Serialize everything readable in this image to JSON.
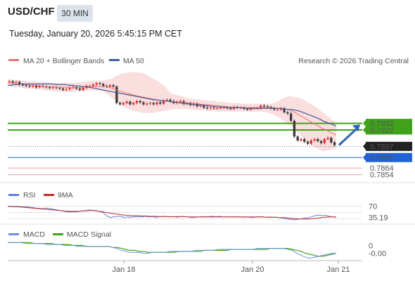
{
  "header": {
    "symbol": "USD/CHF",
    "timeframe": "30 MIN",
    "datetime": "Tuesday, January 20, 2026 5:45:15 PM CET"
  },
  "colors": {
    "candle_up": "#e03030",
    "candle_down": "#3a3a3a",
    "ma20": "#f07070",
    "bollinger_fill": "#fbdede",
    "ma50": "#3d5f9a",
    "resistance": "#3fa21a",
    "current": "#222222",
    "support_blue": "#1f63d6",
    "support_red": "#d94040",
    "rsi": "#5b7fd6",
    "rsi_ma": "#c92a2a",
    "macd": "#6b8fe0",
    "macd_signal": "#3fa21a",
    "arrow": "#2f64b4"
  },
  "chart_data": [
    {
      "type": "line",
      "panel": "price",
      "legend": [
        "MA 20 + Bollinger Bands",
        "MA 50"
      ],
      "source": "Research © 2026 Trading Central",
      "ylim": [
        0.7845,
        0.8015
      ],
      "x_ticks": [
        "Jan 18",
        "Jan 20",
        "Jan 21"
      ],
      "close": [
        0.7996,
        0.7994,
        0.7995,
        0.7991,
        0.799,
        0.7989,
        0.7988,
        0.7989,
        0.7987,
        0.7989,
        0.7988,
        0.7987,
        0.7986,
        0.7987,
        0.7986,
        0.7985,
        0.7983,
        0.7984,
        0.7986,
        0.7987,
        0.7985,
        0.7983,
        0.7986,
        0.7989,
        0.7989,
        0.7991,
        0.7993,
        0.7992,
        0.7989,
        0.7988,
        0.799,
        0.7988,
        0.7963,
        0.7961,
        0.7963,
        0.7965,
        0.7961,
        0.7963,
        0.7966,
        0.7964,
        0.7961,
        0.7962,
        0.7963,
        0.7961,
        0.7964,
        0.7962,
        0.7967,
        0.7968,
        0.7966,
        0.7963,
        0.7965,
        0.7966,
        0.7962,
        0.7963,
        0.796,
        0.7962,
        0.7958,
        0.7959,
        0.7956,
        0.7955,
        0.7956,
        0.7955,
        0.7955,
        0.7956,
        0.7956,
        0.7955,
        0.7954,
        0.7957,
        0.7956,
        0.7956,
        0.7954,
        0.7953,
        0.7955,
        0.7955,
        0.7955,
        0.7959,
        0.7958,
        0.7957,
        0.7955,
        0.7953,
        0.7953,
        0.7955,
        0.7949,
        0.7947,
        0.7936,
        0.7912,
        0.7906,
        0.7908,
        0.7904,
        0.7901,
        0.7906,
        0.7908,
        0.7905,
        0.7902,
        0.7908,
        0.791,
        0.7903,
        0.7899
      ],
      "ma20": [
        0.7994,
        0.7993,
        0.7993,
        0.7992,
        0.7992,
        0.7991,
        0.7991,
        0.799,
        0.799,
        0.7989,
        0.7989,
        0.7988,
        0.7988,
        0.7988,
        0.7987,
        0.7987,
        0.7987,
        0.7987,
        0.7987,
        0.7987,
        0.7987,
        0.7987,
        0.7987,
        0.7988,
        0.7988,
        0.7988,
        0.7988,
        0.7988,
        0.7988,
        0.7988,
        0.7987,
        0.7985,
        0.7983,
        0.7981,
        0.798,
        0.7978,
        0.7977,
        0.7975,
        0.7974,
        0.7973,
        0.7972,
        0.7971,
        0.797,
        0.7969,
        0.7968,
        0.7967,
        0.7966,
        0.7966,
        0.7965,
        0.7965,
        0.7964,
        0.7964,
        0.7964,
        0.7963,
        0.7963,
        0.7962,
        0.7962,
        0.7961,
        0.7961,
        0.796,
        0.796,
        0.7959,
        0.7959,
        0.7958,
        0.7958,
        0.7957,
        0.7957,
        0.7956,
        0.7956,
        0.7956,
        0.7956,
        0.7956,
        0.7956,
        0.7956,
        0.7956,
        0.7956,
        0.7956,
        0.7956,
        0.7956,
        0.7955,
        0.7955,
        0.7955,
        0.7954,
        0.7953,
        0.7951,
        0.7948,
        0.7945,
        0.7942,
        0.7939,
        0.7936,
        0.7933,
        0.793,
        0.7927,
        0.7924,
        0.7922,
        0.7919,
        0.7917,
        0.7914
      ],
      "bb_upper": [
        0.7999,
        0.7999,
        0.7998,
        0.7998,
        0.7997,
        0.7997,
        0.7996,
        0.7996,
        0.7996,
        0.7995,
        0.7995,
        0.7995,
        0.7994,
        0.7994,
        0.7994,
        0.7994,
        0.7994,
        0.7994,
        0.7994,
        0.7994,
        0.7994,
        0.7994,
        0.7995,
        0.7995,
        0.7996,
        0.7996,
        0.7997,
        0.7997,
        0.7997,
        0.7998,
        0.7999,
        0.8001,
        0.8004,
        0.8006,
        0.8008,
        0.8009,
        0.801,
        0.801,
        0.801,
        0.8009,
        0.8008,
        0.8006,
        0.8003,
        0.8,
        0.7997,
        0.7994,
        0.799,
        0.7985,
        0.7979,
        0.7976,
        0.7975,
        0.7974,
        0.7972,
        0.7971,
        0.797,
        0.7969,
        0.7969,
        0.7968,
        0.7967,
        0.7967,
        0.7966,
        0.7966,
        0.7965,
        0.7965,
        0.7964,
        0.7964,
        0.7963,
        0.7963,
        0.7963,
        0.7962,
        0.7962,
        0.7962,
        0.7962,
        0.7962,
        0.7962,
        0.7962,
        0.7962,
        0.7962,
        0.7962,
        0.7964,
        0.7966,
        0.797,
        0.7972,
        0.7973,
        0.7973,
        0.7972,
        0.7971,
        0.7969,
        0.7966,
        0.7963,
        0.796,
        0.7957,
        0.7953,
        0.7949,
        0.7945,
        0.7941,
        0.7937,
        0.7933
      ],
      "bb_lower": [
        0.7989,
        0.7988,
        0.7987,
        0.7987,
        0.7986,
        0.7985,
        0.7985,
        0.7985,
        0.7984,
        0.7984,
        0.7983,
        0.7982,
        0.7982,
        0.7981,
        0.7981,
        0.798,
        0.798,
        0.798,
        0.798,
        0.798,
        0.798,
        0.7981,
        0.7981,
        0.7981,
        0.7982,
        0.7982,
        0.7982,
        0.7982,
        0.7981,
        0.7978,
        0.7974,
        0.797,
        0.7966,
        0.7962,
        0.7958,
        0.7955,
        0.7953,
        0.7951,
        0.795,
        0.7949,
        0.7948,
        0.7948,
        0.7948,
        0.7948,
        0.7949,
        0.795,
        0.7951,
        0.7952,
        0.7953,
        0.7954,
        0.7954,
        0.7954,
        0.7954,
        0.7954,
        0.7953,
        0.7953,
        0.7952,
        0.7952,
        0.7952,
        0.7951,
        0.7951,
        0.7951,
        0.795,
        0.795,
        0.795,
        0.795,
        0.795,
        0.795,
        0.795,
        0.795,
        0.795,
        0.795,
        0.795,
        0.795,
        0.795,
        0.795,
        0.7949,
        0.7948,
        0.7946,
        0.7944,
        0.7941,
        0.7938,
        0.7934,
        0.793,
        0.7926,
        0.7921,
        0.7916,
        0.7911,
        0.7906,
        0.7902,
        0.7898,
        0.7895,
        0.7892,
        0.789,
        0.789,
        0.7891,
        0.7893,
        0.7895
      ],
      "ma50": [
        0.799,
        0.799,
        0.7991,
        0.7991,
        0.7992,
        0.7992,
        0.7992,
        0.7992,
        0.7992,
        0.7992,
        0.7992,
        0.7992,
        0.7992,
        0.7992,
        0.7991,
        0.7991,
        0.7991,
        0.7991,
        0.799,
        0.799,
        0.7989,
        0.7989,
        0.7988,
        0.7988,
        0.7987,
        0.7986,
        0.7985,
        0.7984,
        0.7983,
        0.7982,
        0.7981,
        0.798,
        0.7979,
        0.7978,
        0.7977,
        0.7976,
        0.7975,
        0.7974,
        0.7973,
        0.7972,
        0.7971,
        0.797,
        0.7969,
        0.7968,
        0.7968,
        0.7967,
        0.7966,
        0.7966,
        0.7965,
        0.7964,
        0.7964,
        0.7963,
        0.7962,
        0.7962,
        0.7961,
        0.7961,
        0.796,
        0.796,
        0.7959,
        0.7959,
        0.7958,
        0.7958,
        0.7957,
        0.7957,
        0.7957,
        0.7956,
        0.7956,
        0.7956,
        0.7956,
        0.7956,
        0.7955,
        0.7955,
        0.7955,
        0.7955,
        0.7955,
        0.7955,
        0.7955,
        0.7955,
        0.7955,
        0.7955,
        0.7955,
        0.7954,
        0.7954,
        0.7953,
        0.7953,
        0.7952,
        0.7951,
        0.7949,
        0.7947,
        0.7945,
        0.7943,
        0.7941,
        0.7939,
        0.7936,
        0.7934,
        0.7932,
        0.793,
        0.7928
      ],
      "levels": [
        {
          "label": "0.7932",
          "value": 0.7932,
          "kind": "resistance"
        },
        {
          "label": "0.7922",
          "value": 0.7922,
          "kind": "resistance"
        },
        {
          "label": "0.7897",
          "value": 0.7897,
          "kind": "current"
        },
        {
          "label": "0.7880",
          "value": 0.788,
          "kind": "support_blue"
        },
        {
          "label": "0.7864",
          "value": 0.7864,
          "kind": "support_red"
        },
        {
          "label": "0.7854",
          "value": 0.7854,
          "kind": "support_red"
        }
      ]
    },
    {
      "type": "line",
      "panel": "rsi",
      "legend": [
        "RSI",
        "9MA"
      ],
      "ylim": [
        20,
        80
      ],
      "y_ticks": [
        "70"
      ],
      "guide_levels": [
        70,
        50,
        30
      ],
      "last_value_label": "35.19",
      "rsi": [
        70,
        70,
        69,
        69,
        68,
        68,
        67,
        66,
        64,
        63,
        62,
        64,
        62,
        60,
        58,
        56,
        54,
        52,
        52,
        52,
        53,
        55,
        56,
        58,
        57,
        56,
        53,
        50,
        40,
        34,
        36,
        38,
        38,
        34,
        36,
        35,
        37,
        37,
        36,
        38,
        36,
        37,
        35,
        37,
        38,
        37,
        36,
        37,
        35,
        38,
        37,
        36,
        34,
        35,
        36,
        37,
        37,
        37,
        38,
        37,
        38,
        36,
        36,
        37,
        37,
        36,
        36,
        35,
        36,
        34,
        35,
        36,
        37,
        35,
        36,
        35,
        35,
        34,
        32,
        30,
        28,
        27,
        28,
        30,
        32,
        33,
        36,
        40,
        42,
        40,
        41,
        38,
        36,
        35
      ],
      "rsi_ma": [
        69,
        69,
        68,
        68,
        67,
        66,
        65,
        64,
        63,
        62,
        61,
        60,
        59,
        58,
        57,
        56,
        55,
        54,
        54,
        54,
        54,
        55,
        55,
        56,
        56,
        55,
        54,
        52,
        50,
        48,
        46,
        45,
        43,
        42,
        41,
        40,
        40,
        40,
        39,
        39,
        38,
        38,
        38,
        37,
        37,
        37,
        37,
        37,
        37,
        37,
        37,
        36,
        36,
        36,
        36,
        36,
        36,
        36,
        36,
        36,
        36,
        36,
        36,
        36,
        36,
        36,
        36,
        36,
        36,
        36,
        36,
        36,
        36,
        35,
        35,
        35,
        35,
        34,
        34,
        33,
        32,
        31,
        30,
        30,
        29,
        29,
        30,
        31,
        33,
        34,
        35,
        36,
        36,
        36
      ]
    },
    {
      "type": "line",
      "panel": "macd",
      "legend": [
        "MACD",
        "MACD Signal"
      ],
      "ylim": [
        -0.0014,
        0.0006
      ],
      "y_ticks": [
        "0"
      ],
      "last_value_label": "-0.00",
      "macd": [
        0.0003,
        0.0003,
        0.0003,
        0.0003,
        0.0002,
        0.0002,
        0.0002,
        0.0002,
        0.0002,
        0.0001,
        0.0001,
        0.0001,
        0.0001,
        0.0,
        0.0,
        0.0,
        -0.0001,
        -0.0001,
        -0.0001,
        -0.0001,
        -0.0001,
        -0.0001,
        -0.0001,
        -0.0001,
        -0.0002,
        -0.0003,
        -0.0005,
        -0.0006,
        -0.0007,
        -0.0007,
        -0.0007,
        -0.0008,
        -0.0008,
        -0.0007,
        -0.0007,
        -0.0007,
        -0.0007,
        -0.0006,
        -0.0006,
        -0.0006,
        -0.0006,
        -0.0006,
        -0.0006,
        -0.0005,
        -0.0005,
        -0.0005,
        -0.0005,
        -0.0005,
        -0.0004,
        -0.0004,
        -0.0004,
        -0.0004,
        -0.0004,
        -0.0004,
        -0.0004,
        -0.0004,
        -0.0004,
        -0.0003,
        -0.0003,
        -0.0003,
        -0.0003,
        -0.0003,
        -0.0003,
        -0.0003,
        -0.0004,
        -0.0005,
        -0.0008,
        -0.001,
        -0.0012,
        -0.0013,
        -0.0012,
        -0.0011,
        -0.001,
        -0.0009,
        -0.0008,
        -0.0008
      ],
      "signal": [
        0.0003,
        0.0003,
        0.0003,
        0.0003,
        0.0003,
        0.0003,
        0.0002,
        0.0002,
        0.0002,
        0.0002,
        0.0002,
        0.0001,
        0.0001,
        0.0001,
        0.0001,
        0.0,
        0.0,
        0.0,
        -0.0001,
        -0.0001,
        -0.0001,
        -0.0001,
        -0.0001,
        -0.0001,
        -0.0002,
        -0.0002,
        -0.0003,
        -0.0004,
        -0.0005,
        -0.0005,
        -0.0006,
        -0.0006,
        -0.0007,
        -0.0007,
        -0.0007,
        -0.0007,
        -0.0007,
        -0.0007,
        -0.0007,
        -0.0006,
        -0.0006,
        -0.0006,
        -0.0006,
        -0.0006,
        -0.0006,
        -0.0005,
        -0.0005,
        -0.0005,
        -0.0005,
        -0.0005,
        -0.0005,
        -0.0004,
        -0.0004,
        -0.0004,
        -0.0004,
        -0.0004,
        -0.0004,
        -0.0004,
        -0.0004,
        -0.0004,
        -0.0003,
        -0.0003,
        -0.0003,
        -0.0003,
        -0.0003,
        -0.0004,
        -0.0005,
        -0.0006,
        -0.0008,
        -0.0009,
        -0.001,
        -0.0011,
        -0.0011,
        -0.001,
        -0.0009,
        -0.0008
      ]
    }
  ]
}
